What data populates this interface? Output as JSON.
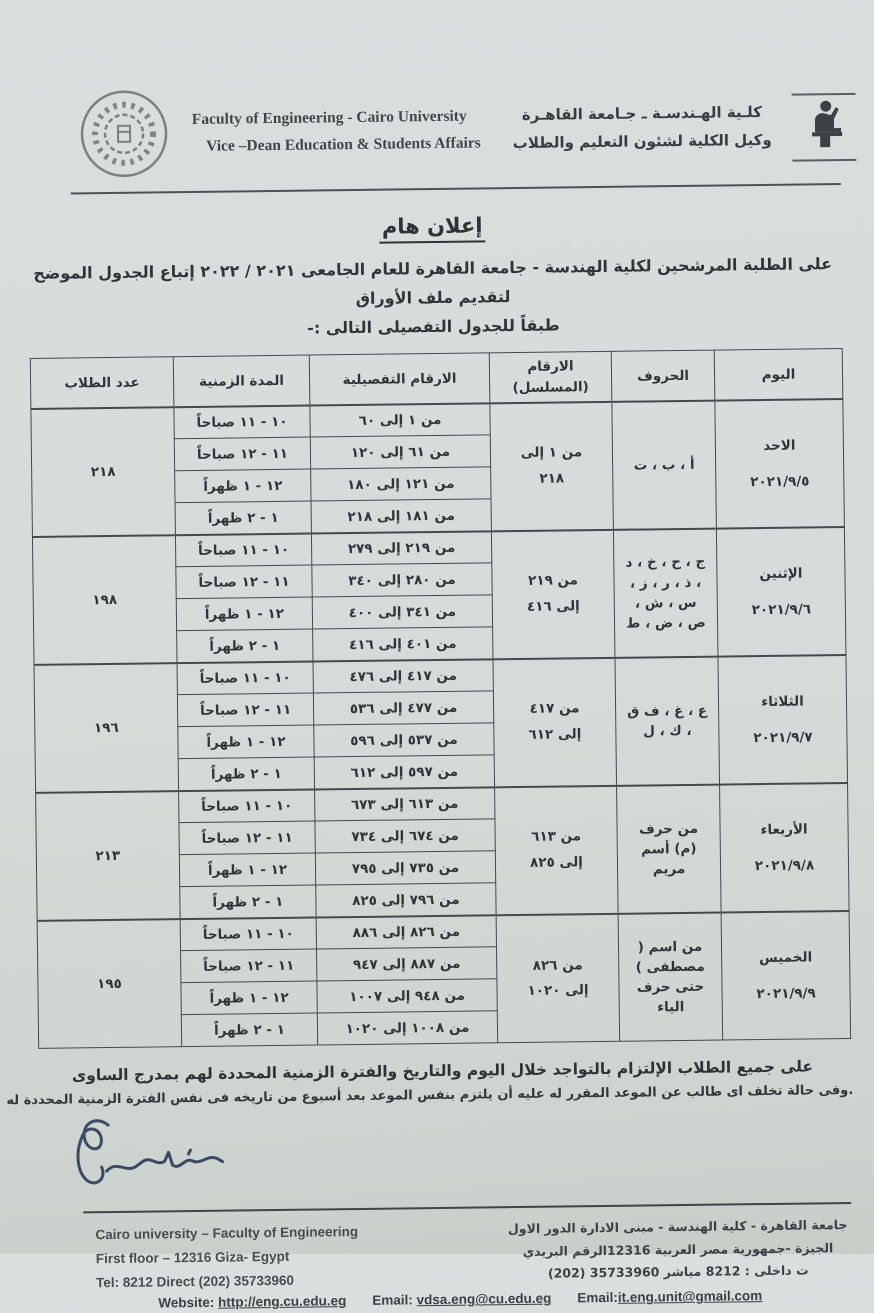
{
  "colors": {
    "paper": "#d6dbd9",
    "ink": "#31353a",
    "table_border": "#44494e",
    "signature_ink": "#2e3b59"
  },
  "letterhead": {
    "english_line1": "Faculty of Engineering - Cairo University",
    "english_line2": "Vice –Dean Education & Students Affairs",
    "arabic_line1": "كلـية الهـندسـة ـ جـامعة القاهـرة",
    "arabic_line2": "وكيل الكلية لشئون التعليم والطلاب",
    "seal_icon": "faculty-seal-icon",
    "scribe_icon": "cairo-university-scribe-icon"
  },
  "title": "إعلان هام",
  "intro": {
    "line1": "على الطلبة المرشحين لكلية الهندسة - جامعة القاهرة للعام الجامعى ٢٠٢١ / ٢٠٢٢ إتباع الجدول الموضح لتقديم ملف الأوراق",
    "line2": "طبقاً للجدول التفصيلى التالى :-"
  },
  "table": {
    "headers": [
      "اليوم",
      "الحروف",
      "الارقام (المسلسل)",
      "الارقام التفصيلية",
      "المدة الزمنية",
      "عدد الطلاب"
    ],
    "groups": [
      {
        "day": "الاحد",
        "date": "٢٠٢١/٩/٥",
        "letters": "أ ، ب ، ت",
        "serial": "من ١ إلى ٢١٨",
        "students": "٢١٨",
        "slots": [
          {
            "numbers": "من ١ إلى ٦٠",
            "time": "١٠ - ١١ صباحاً"
          },
          {
            "numbers": "من ٦١ إلى ١٢٠",
            "time": "١١ - ١٢ صباحاً"
          },
          {
            "numbers": "من ١٢١ إلى ١٨٠",
            "time": "١٢ - ١ ظهراً"
          },
          {
            "numbers": "من ١٨١ إلى ٢١٨",
            "time": "١ - ٢ ظهراً"
          }
        ]
      },
      {
        "day": "الإثنين",
        "date": "٢٠٢١/٩/٦",
        "letters": "ج ، ح ، خ ، د ، ذ ، ر ، ز ، س ، ش ، ص ، ض ، ط",
        "serial": "من ٢١٩ إلى ٤١٦",
        "students": "١٩٨",
        "slots": [
          {
            "numbers": "من ٢١٩ إلى ٢٧٩",
            "time": "١٠ - ١١ صباحاً"
          },
          {
            "numbers": "من ٢٨٠ إلى ٣٤٠",
            "time": "١١ - ١٢ صباحاً"
          },
          {
            "numbers": "من ٣٤١ إلى ٤٠٠",
            "time": "١٢ - ١ ظهراً"
          },
          {
            "numbers": "من ٤٠١ إلى ٤١٦",
            "time": "١ - ٢ ظهراً"
          }
        ]
      },
      {
        "day": "الثلاثاء",
        "date": "٢٠٢١/٩/٧",
        "letters": "ع ، غ ، ف ق ، ك ، ل",
        "serial": "من ٤١٧ إلى ٦١٢",
        "students": "١٩٦",
        "slots": [
          {
            "numbers": "من ٤١٧ إلى ٤٧٦",
            "time": "١٠ - ١١ صباحاً"
          },
          {
            "numbers": "من ٤٧٧ إلى ٥٣٦",
            "time": "١١ - ١٢ صباحاً"
          },
          {
            "numbers": "من ٥٣٧ إلى ٥٩٦",
            "time": "١٢ - ١ ظهراً"
          },
          {
            "numbers": "من ٥٩٧ إلى ٦١٢",
            "time": "١ - ٢ ظهراً"
          }
        ]
      },
      {
        "day": "الأربعاء",
        "date": "٢٠٢١/٩/٨",
        "letters": "من حرف (م) أسم مريم",
        "serial": "من ٦١٣ إلى ٨٢٥",
        "students": "٢١٣",
        "slots": [
          {
            "numbers": "من ٦١٣ إلى ٦٧٣",
            "time": "١٠ - ١١ صباحاً"
          },
          {
            "numbers": "من ٦٧٤ إلى ٧٣٤",
            "time": "١١ - ١٢ صباحاً"
          },
          {
            "numbers": "من ٧٣٥ إلى ٧٩٥",
            "time": "١٢ - ١ ظهراً"
          },
          {
            "numbers": "من ٧٩٦ إلى ٨٢٥",
            "time": "١ - ٢ ظهراً"
          }
        ]
      },
      {
        "day": "الخميس",
        "date": "٢٠٢١/٩/٩",
        "letters": "من اسم ( مصطفى ) حتى حرف الياء",
        "serial": "من ٨٢٦ إلى ١٠٢٠",
        "students": "١٩٥",
        "slots": [
          {
            "numbers": "من ٨٢٦ إلى ٨٨٦",
            "time": "١٠ - ١١ صباحاً"
          },
          {
            "numbers": "من ٨٨٧ إلى ٩٤٧",
            "time": "١١ - ١٢ صباحاً"
          },
          {
            "numbers": "من ٩٤٨ إلى ١٠٠٧",
            "time": "١٢ - ١ ظهراً"
          },
          {
            "numbers": "من ١٠٠٨ إلى ١٠٢٠",
            "time": "١ - ٢ ظهراً"
          }
        ]
      }
    ]
  },
  "notes": {
    "note1": "على جميع الطلاب الإلتزام بالتواجد خلال اليوم والتاريخ والفترة الزمنية المحددة لهم بمدرج الساوى",
    "note2": ".وفى حالة تخلف اى طالب عن الموعد المقرر له عليه أن يلتزم بنفس الموعد بعد أسبوع من تاريخه فى نفس الفترة الزمنية المحددة له"
  },
  "footer": {
    "english_line1": "Cairo university – Faculty of Engineering",
    "english_line2": "First floor – 12316 Giza- Egypt",
    "english_line3": "Tel: 8212  Direct (202) 35733960",
    "arabic_line1": "جامعة القاهرة - كلية الهندسة - مبنى الادارة الدور الاول",
    "arabic_line2": "الجيزة -جمهورية مصر العربية 12316الرقم البريدي",
    "arabic_line3": "ت داخلى : 8212 مباشر 35733960 (202)",
    "links": [
      {
        "label": "Website:",
        "url": "http://eng.cu.edu.eg"
      },
      {
        "label": "Email:",
        "url": "vdsa.eng@cu.edu.eg"
      },
      {
        "label": "Email:",
        "url": "it.eng.unit@gmail.com"
      }
    ]
  }
}
